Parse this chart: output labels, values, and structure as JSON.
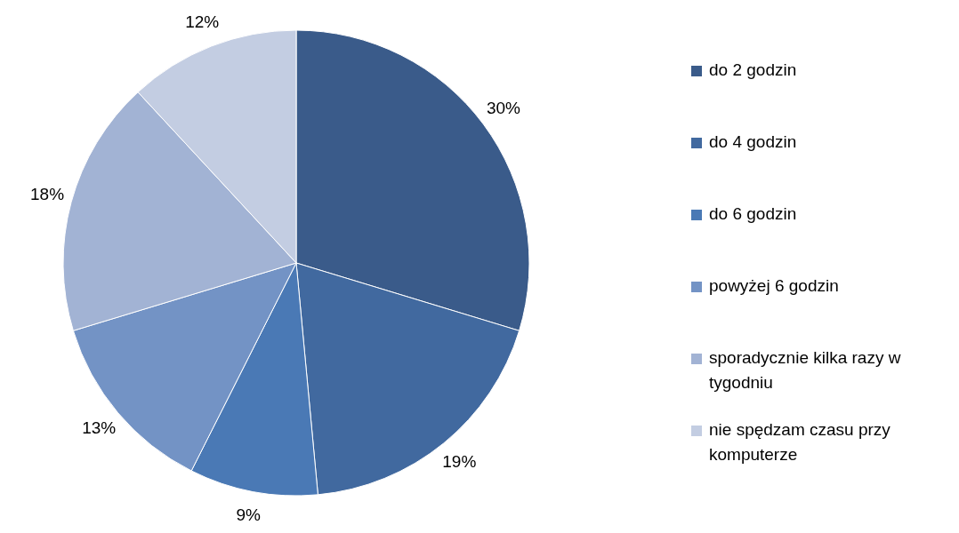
{
  "chart_data": {
    "type": "pie",
    "categories": [
      "do 2 godzin",
      "do 4 godzin",
      "do 6 godzin",
      "powyżej 6 godzin",
      "sporadycznie kilka razy w tygodniu",
      "nie spędzam czasu przy komputerze"
    ],
    "values": [
      30,
      19,
      9,
      13,
      18,
      12
    ],
    "value_labels": [
      "30%",
      "19%",
      "9%",
      "13%",
      "18%",
      "12%"
    ],
    "colors": [
      "#3a5b8a",
      "#41699f",
      "#4a79b5",
      "#7393c5",
      "#a2b3d4",
      "#c3cde2"
    ],
    "legend": "right"
  }
}
